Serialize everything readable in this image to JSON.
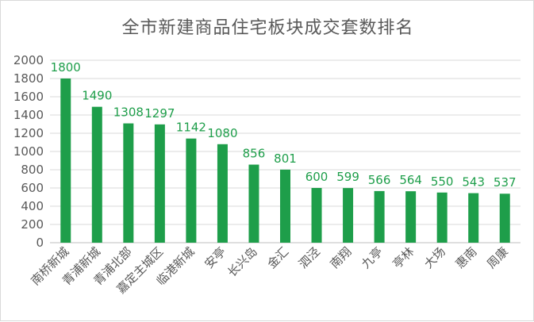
{
  "chart_data": {
    "type": "bar",
    "title": "全市新建商品住宅板块成交套数排名",
    "xlabel": "",
    "ylabel": "",
    "ylim": [
      0,
      2000
    ],
    "yticks": [
      0,
      200,
      400,
      600,
      800,
      1000,
      1200,
      1400,
      1600,
      1800,
      2000
    ],
    "grid": true,
    "legend": "none",
    "categories": [
      "南桥新城",
      "青浦新城",
      "青浦北部",
      "嘉定主城区",
      "临港新城",
      "安亭",
      "长兴岛",
      "金汇",
      "泗泾",
      "南翔",
      "九亭",
      "亭林",
      "大场",
      "惠南",
      "周康"
    ],
    "values": [
      1800,
      1490,
      1308,
      1297,
      1142,
      1080,
      856,
      801,
      600,
      599,
      566,
      564,
      550,
      543,
      537
    ],
    "colors": {
      "bar": "#1e9e4a",
      "data_label": "#1e9e4a",
      "axis_text": "#595959",
      "grid": "#d9d9d9",
      "title": "#595959"
    }
  }
}
